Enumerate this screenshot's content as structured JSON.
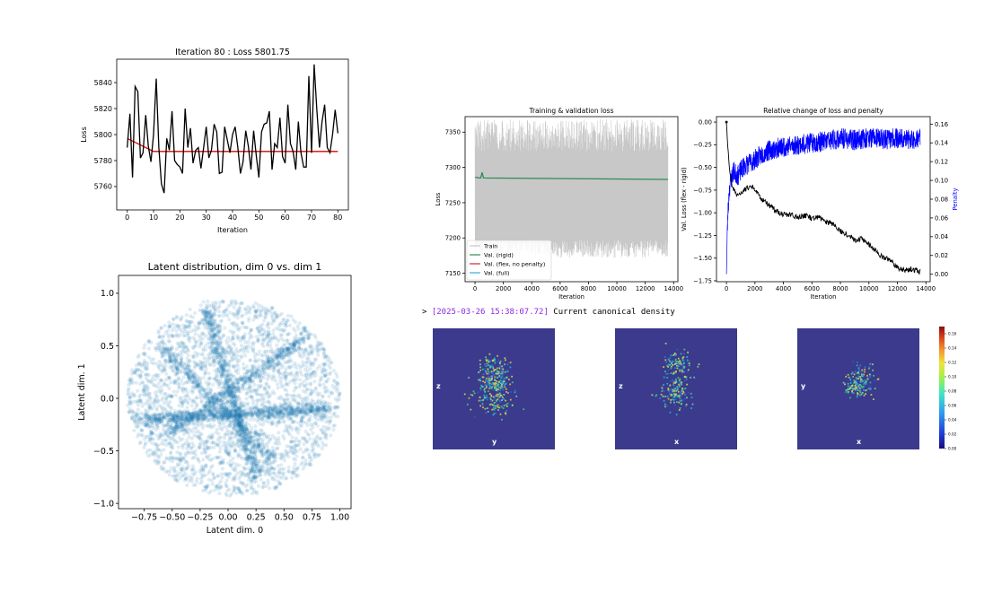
{
  "chart_data": [
    {
      "type": "line",
      "title": "Iteration   80 : Loss  5801.75",
      "xlabel": "Iteration",
      "ylabel": "Loss",
      "xlim": [
        -4,
        84
      ],
      "ylim": [
        5742,
        5858
      ],
      "xticks": [
        0,
        10,
        20,
        30,
        40,
        50,
        60,
        70,
        80
      ],
      "yticks": [
        5760,
        5780,
        5800,
        5820,
        5840
      ],
      "series": [
        {
          "color": "#000000",
          "x": [
            0,
            1,
            2,
            3,
            4,
            5,
            6,
            7,
            8,
            9,
            10,
            11,
            12,
            13,
            14,
            15,
            16,
            17,
            18,
            19,
            20,
            21,
            22,
            23,
            24,
            25,
            26,
            27,
            28,
            29,
            30,
            31,
            32,
            33,
            34,
            35,
            36,
            37,
            38,
            39,
            40,
            41,
            42,
            43,
            44,
            45,
            46,
            47,
            48,
            49,
            50,
            51,
            52,
            53,
            54,
            55,
            56,
            57,
            58,
            59,
            60,
            61,
            62,
            63,
            64,
            65,
            66,
            67,
            68,
            69,
            70,
            71,
            72,
            73,
            74,
            75,
            76,
            77,
            78,
            79,
            80
          ],
          "y": [
            5790,
            5816,
            5767,
            5837,
            5833,
            5782,
            5786,
            5815,
            5791,
            5779,
            5800,
            5843,
            5790,
            5762,
            5755,
            5797,
            5788,
            5818,
            5780,
            5777,
            5775,
            5770,
            5820,
            5790,
            5805,
            5778,
            5788,
            5790,
            5774,
            5790,
            5806,
            5782,
            5788,
            5808,
            5802,
            5770,
            5771,
            5806,
            5796,
            5786,
            5800,
            5806,
            5790,
            5770,
            5779,
            5803,
            5791,
            5773,
            5803,
            5784,
            5767,
            5802,
            5808,
            5809,
            5818,
            5773,
            5793,
            5790,
            5813,
            5783,
            5778,
            5823,
            5793,
            5787,
            5773,
            5810,
            5786,
            5775,
            5775,
            5845,
            5786,
            5854,
            5820,
            5790,
            5810,
            5823,
            5790,
            5786,
            5800,
            5819,
            5801
          ]
        },
        {
          "color": "#dd0000",
          "x": [
            0,
            5,
            10,
            15,
            20,
            30,
            40,
            50,
            60,
            70,
            80
          ],
          "y": [
            5797,
            5792,
            5787,
            5787,
            5787,
            5787,
            5787,
            5787,
            5787,
            5787,
            5787
          ]
        }
      ]
    },
    {
      "type": "scatter",
      "title": "Latent distribution, dim 0 vs. dim 1",
      "xlabel": "Latent dim. 0",
      "ylabel": "Latent dim. 1",
      "xlim": [
        -0.98,
        1.1
      ],
      "ylim": [
        -1.05,
        1.17
      ],
      "xticks": [
        -0.75,
        -0.5,
        -0.25,
        0.0,
        0.25,
        0.5,
        0.75,
        1.0
      ],
      "xticklabels": [
        "−0.75",
        "−0.50",
        "−0.25",
        "0.00",
        "0.25",
        "0.50",
        "0.75",
        "1.00"
      ],
      "yticks": [
        -1.0,
        -0.5,
        0.0,
        0.5,
        1.0
      ],
      "yticklabels": [
        "−1.0",
        "−0.5",
        "0.0",
        "0.5",
        "1.0"
      ],
      "color": "#1f77b4",
      "center": [
        0.05,
        0.0
      ],
      "radius": 0.95
    },
    {
      "type": "line",
      "title": "Training & validation loss",
      "xlabel": "Iteration",
      "ylabel": "Loss",
      "xlim": [
        -700,
        14300
      ],
      "ylim": [
        7138,
        7372
      ],
      "xticks": [
        0,
        2000,
        4000,
        6000,
        8000,
        10000,
        12000,
        14000
      ],
      "yticks": [
        7150,
        7200,
        7250,
        7300,
        7350
      ],
      "legend_position": "lower-left",
      "series": [
        {
          "name": "Train",
          "color": "#c8c8c8",
          "x_range": [
            0,
            13600
          ],
          "y_band": [
            7172,
            7368
          ]
        },
        {
          "name": "Val. (rigid)",
          "color": "#2e8b57",
          "x": [
            0,
            400,
            500,
            600,
            13600
          ],
          "y": [
            7286,
            7285,
            7293,
            7285,
            7283
          ]
        },
        {
          "name": "Val. (flex, no penalty)",
          "color": "#d62728",
          "x": [],
          "y": []
        },
        {
          "name": "Val. (full)",
          "color": "#3fa9d8",
          "x": [],
          "y": []
        }
      ]
    },
    {
      "type": "line",
      "title": "Relative change of loss and penalty",
      "xlabel": "Iteration",
      "ylabel": "Val. Loss (flex - rigid)",
      "y2label": "Penalty",
      "xlim": [
        -700,
        14300
      ],
      "ylim": [
        -1.76,
        0.06
      ],
      "y2lim": [
        -0.008,
        0.168
      ],
      "xticks": [
        0,
        2000,
        4000,
        6000,
        8000,
        10000,
        12000,
        14000
      ],
      "yticks": [
        0.0,
        -0.25,
        -0.5,
        -0.75,
        -1.0,
        -1.25,
        -1.5,
        -1.75
      ],
      "yticklabels": [
        "0.00",
        "−0.25",
        "−0.50",
        "−0.75",
        "−1.00",
        "−1.25",
        "−1.50",
        "−1.75"
      ],
      "y2ticks": [
        0.0,
        0.02,
        0.04,
        0.06,
        0.08,
        0.1,
        0.12,
        0.14,
        0.16
      ],
      "y2ticklabels": [
        "0.00",
        "0.02",
        "0.04",
        "0.06",
        "0.08",
        "0.10",
        "0.12",
        "0.14",
        "0.16"
      ],
      "series": [
        {
          "color": "#000000",
          "axis": "left",
          "x": [
            0,
            100,
            200,
            400,
            700,
            1000,
            1500,
            1800,
            2000,
            2500,
            3000,
            3500,
            4000,
            4500,
            5000,
            5500,
            6000,
            6500,
            7000,
            7500,
            8000,
            8500,
            9000,
            9500,
            10000,
            10500,
            11000,
            11500,
            12000,
            12500,
            13000,
            13600
          ],
          "y": [
            0.0,
            -0.3,
            -0.5,
            -0.7,
            -0.82,
            -0.78,
            -0.72,
            -0.7,
            -0.75,
            -0.85,
            -0.92,
            -0.98,
            -1.02,
            -1.02,
            -1.05,
            -1.03,
            -1.06,
            -1.05,
            -1.1,
            -1.12,
            -1.2,
            -1.24,
            -1.3,
            -1.28,
            -1.35,
            -1.42,
            -1.5,
            -1.52,
            -1.6,
            -1.64,
            -1.62,
            -1.65
          ]
        },
        {
          "color": "#0000ff",
          "axis": "right",
          "x": [
            0,
            50,
            100,
            200,
            300,
            500,
            800,
            1200,
            1800,
            2500,
            3000,
            4000,
            5000,
            6000,
            7000,
            8000,
            9000,
            10000,
            11000,
            12000,
            13000,
            13600
          ],
          "y": [
            0.0,
            0.04,
            0.065,
            0.09,
            0.1,
            0.11,
            0.105,
            0.115,
            0.12,
            0.128,
            0.132,
            0.136,
            0.138,
            0.14,
            0.142,
            0.145,
            0.143,
            0.146,
            0.144,
            0.145,
            0.143,
            0.146
          ]
        }
      ]
    },
    {
      "type": "heatmap",
      "colorbar_ticks": [
        "0.16",
        "0.14",
        "0.12",
        "0.10",
        "0.08",
        "0.06",
        "0.04",
        "0.02",
        "0.00"
      ],
      "colorbar_range": [
        0.0,
        0.17
      ]
    }
  ],
  "log": {
    "prefix": "> ",
    "timestamp": "[2025-03-26 15:38:07.72]",
    "message": " Current canonical density"
  },
  "density_panels": [
    {
      "ylabel": "z",
      "xlabel": "y"
    },
    {
      "ylabel": "z",
      "xlabel": "x"
    },
    {
      "ylabel": "y",
      "xlabel": "x"
    }
  ],
  "colors": {
    "background": "#ffffff",
    "density_background": "#3b3a8c",
    "scatter": "#1f77b4"
  }
}
